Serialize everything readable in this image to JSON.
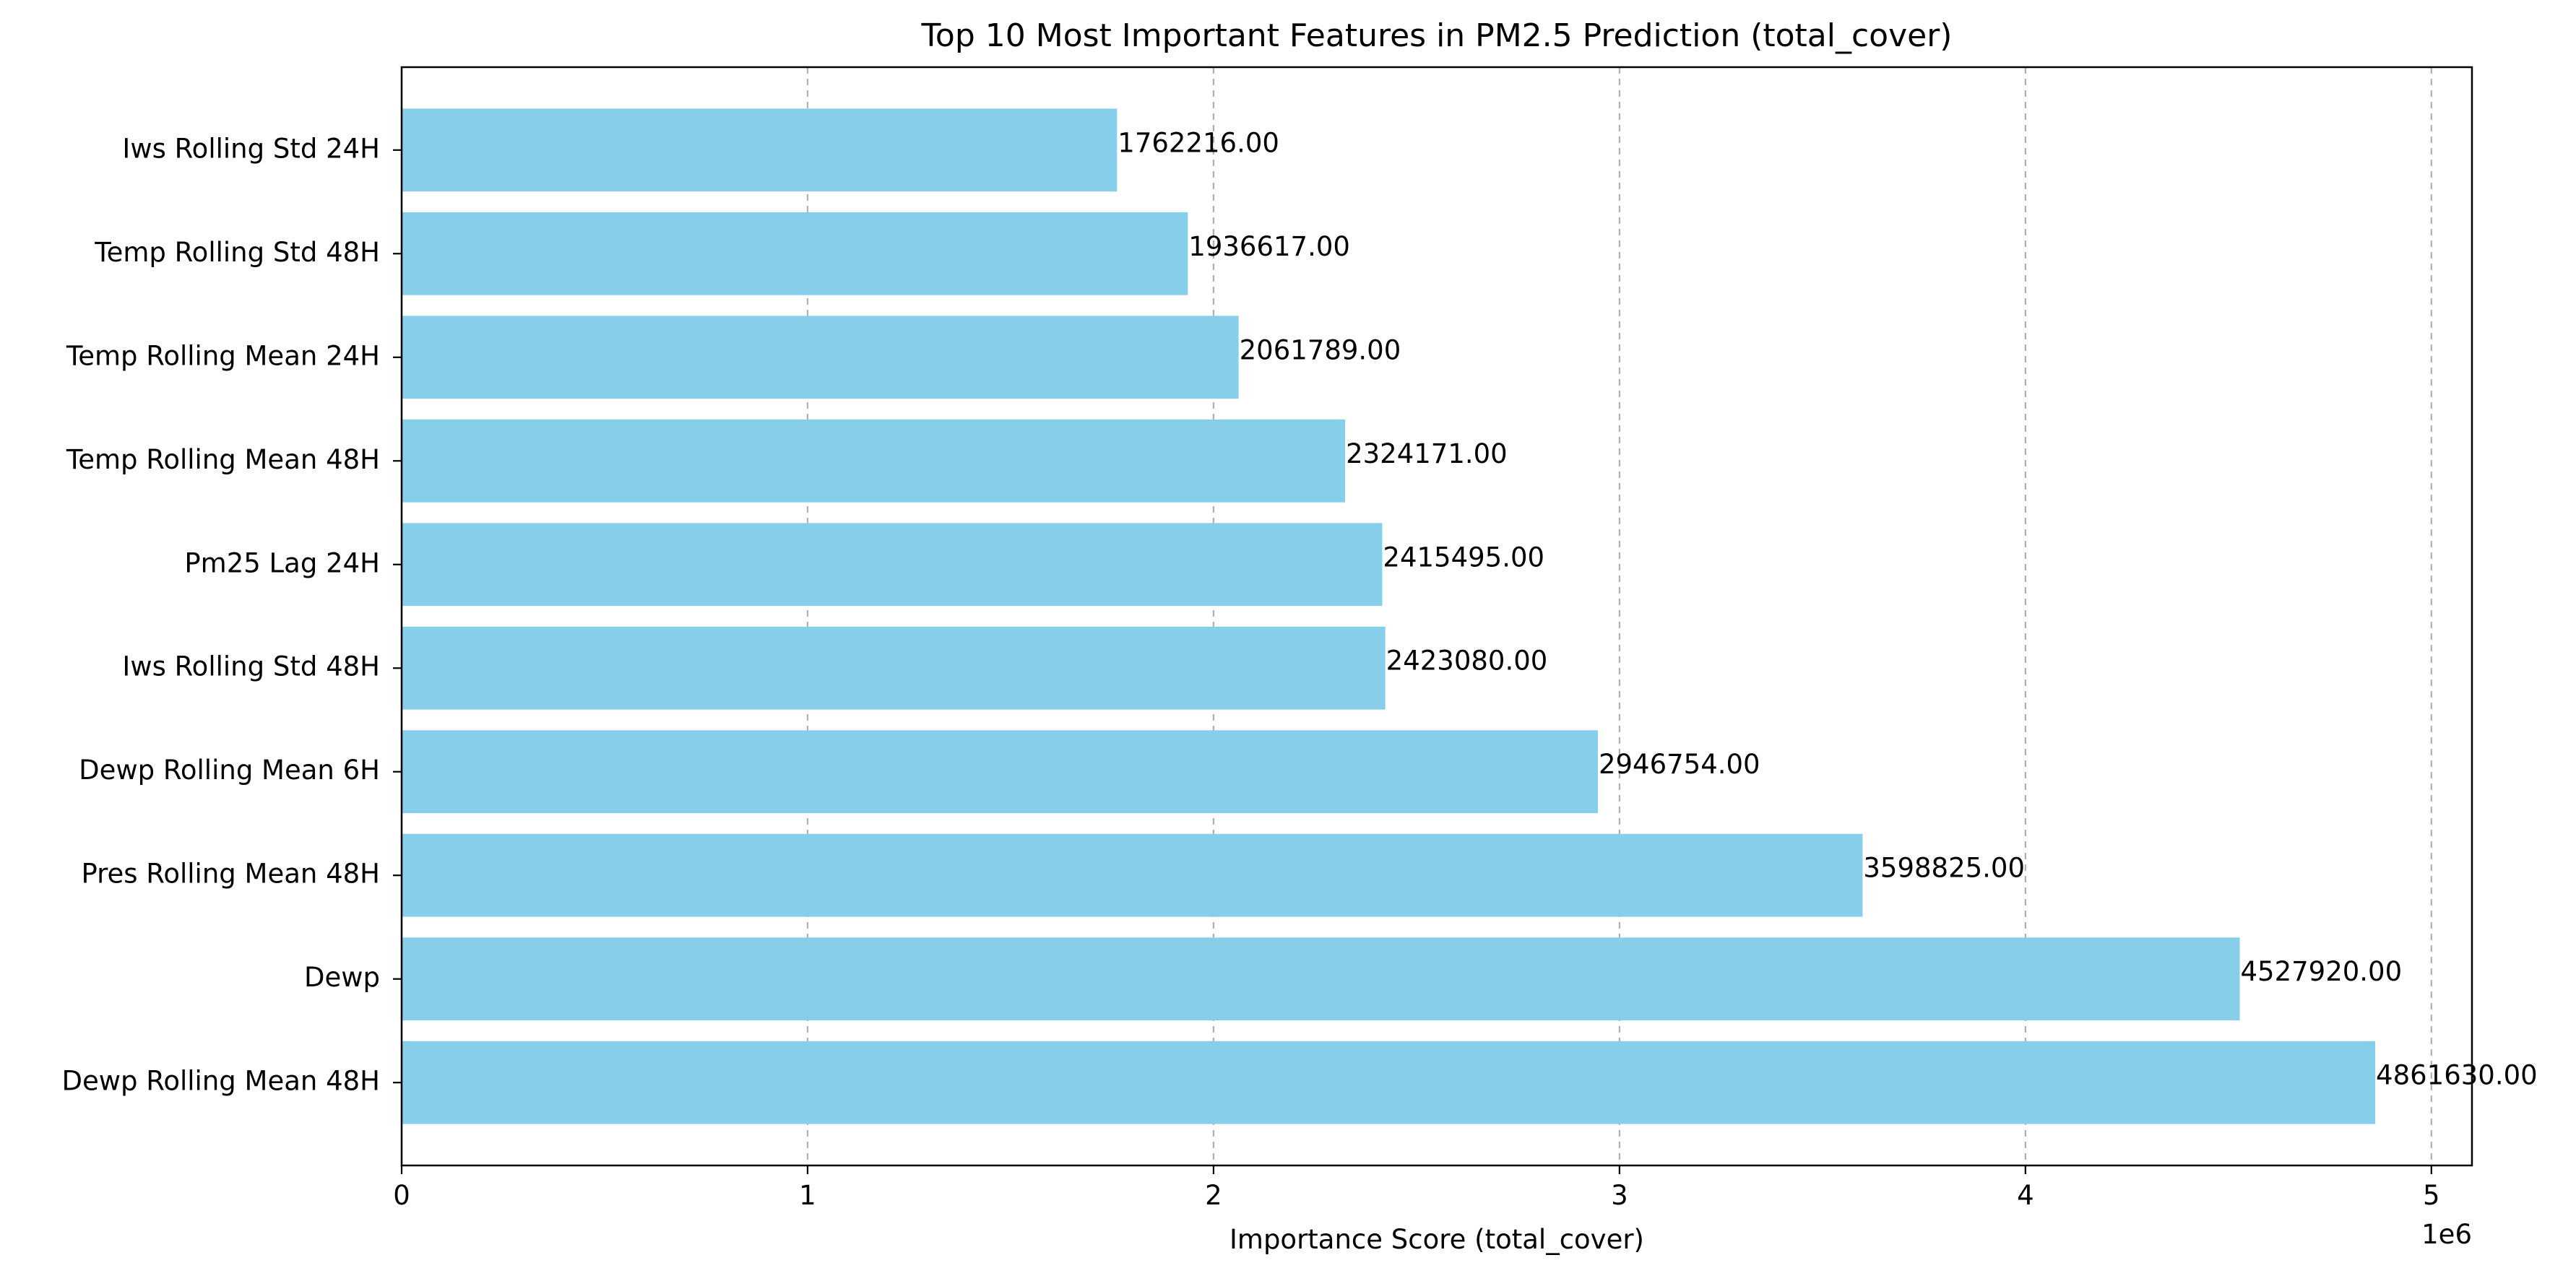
{
  "chart_data": {
    "type": "bar",
    "orientation": "horizontal",
    "title": "Top 10 Most Important Features in PM2.5 Prediction (total_cover)",
    "xlabel": "Importance Score (total_cover)",
    "ylabel": "",
    "x_scale_label": "1e6",
    "xlim": [
      0,
      5.1
    ],
    "x_ticks": [
      0,
      1,
      2,
      3,
      4,
      5
    ],
    "x_tick_labels": [
      "0",
      "1",
      "2",
      "3",
      "4",
      "5"
    ],
    "grid": "vertical dashed",
    "bar_color": "#87CEEB",
    "categories": [
      "Iws Rolling Std 24H",
      "Temp Rolling Std 48H",
      "Temp Rolling Mean 24H",
      "Temp Rolling Mean 48H",
      "Pm25 Lag 24H",
      "Iws Rolling Std 48H",
      "Dewp Rolling Mean 6H",
      "Pres Rolling Mean 48H",
      "Dewp",
      "Dewp Rolling Mean 48H"
    ],
    "values": [
      1762216,
      1936617,
      2061789,
      2324171,
      2415495,
      2423080,
      2946754,
      3598825,
      4527920,
      4861630
    ],
    "value_labels": [
      "1762216.00",
      "1936617.00",
      "2061789.00",
      "2324171.00",
      "2415495.00",
      "2423080.00",
      "2946754.00",
      "3598825.00",
      "4527920.00",
      "4861630.00"
    ]
  }
}
